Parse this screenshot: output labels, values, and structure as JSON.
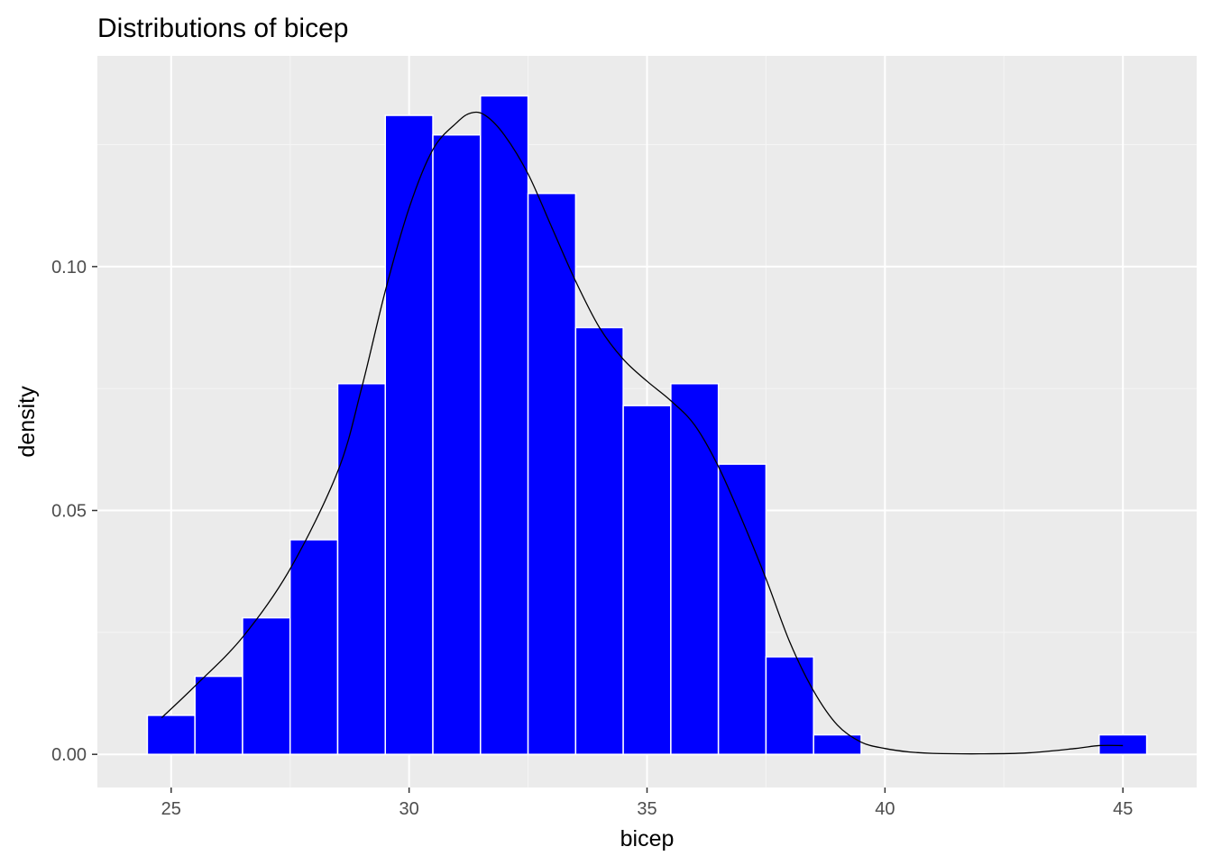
{
  "chart_data": {
    "type": "bar",
    "title": "Distributions of bicep",
    "xlabel": "bicep",
    "ylabel": "density",
    "xlim": [
      23.45,
      46.55
    ],
    "ylim": [
      -0.0068,
      0.1432
    ],
    "x_ticks": [
      25,
      30,
      35,
      40,
      45
    ],
    "x_tick_labels": [
      "25",
      "30",
      "35",
      "40",
      "45"
    ],
    "y_ticks": [
      0.0,
      0.05,
      0.1
    ],
    "y_tick_labels": [
      "0.00",
      "0.05",
      "0.10"
    ],
    "grid": true,
    "bin_width": 1,
    "bins": [
      {
        "x": 25,
        "density": 0.008
      },
      {
        "x": 26,
        "density": 0.016
      },
      {
        "x": 27,
        "density": 0.028
      },
      {
        "x": 28,
        "density": 0.044
      },
      {
        "x": 29,
        "density": 0.076
      },
      {
        "x": 30,
        "density": 0.131
      },
      {
        "x": 31,
        "density": 0.127
      },
      {
        "x": 32,
        "density": 0.135
      },
      {
        "x": 33,
        "density": 0.115
      },
      {
        "x": 34,
        "density": 0.0875
      },
      {
        "x": 35,
        "density": 0.0715
      },
      {
        "x": 36,
        "density": 0.076
      },
      {
        "x": 37,
        "density": 0.0595
      },
      {
        "x": 38,
        "density": 0.02
      },
      {
        "x": 39,
        "density": 0.004
      },
      {
        "x": 45,
        "density": 0.004
      }
    ],
    "density_curve": {
      "x": [
        24.8,
        25.5,
        26.5,
        27.5,
        28.5,
        29.0,
        29.5,
        30.0,
        30.5,
        31.0,
        31.3,
        31.6,
        32.0,
        32.5,
        33.0,
        33.5,
        34.0,
        34.5,
        35.0,
        35.5,
        36.0,
        36.5,
        37.0,
        37.5,
        38.0,
        38.5,
        39.0,
        39.5,
        40.0,
        40.5,
        41.0,
        42.0,
        43.0,
        44.0,
        44.5,
        45.0
      ],
      "y": [
        0.0075,
        0.014,
        0.024,
        0.038,
        0.058,
        0.075,
        0.095,
        0.112,
        0.124,
        0.1295,
        0.1315,
        0.131,
        0.127,
        0.119,
        0.108,
        0.097,
        0.0875,
        0.081,
        0.0765,
        0.0725,
        0.0675,
        0.059,
        0.048,
        0.036,
        0.023,
        0.013,
        0.006,
        0.0025,
        0.0012,
        0.0005,
        0.0002,
        0.0001,
        0.0003,
        0.0012,
        0.0018,
        0.0018
      ]
    },
    "colors": {
      "panel_background": "#ebebeb",
      "grid_major": "#ffffff",
      "grid_minor": "#f5f5f5",
      "bar_fill": "#0000ff",
      "bar_outline": "#ffffff",
      "curve": "#000000",
      "tick_label": "#4d4d4d",
      "tick_mark": "#333333"
    }
  }
}
